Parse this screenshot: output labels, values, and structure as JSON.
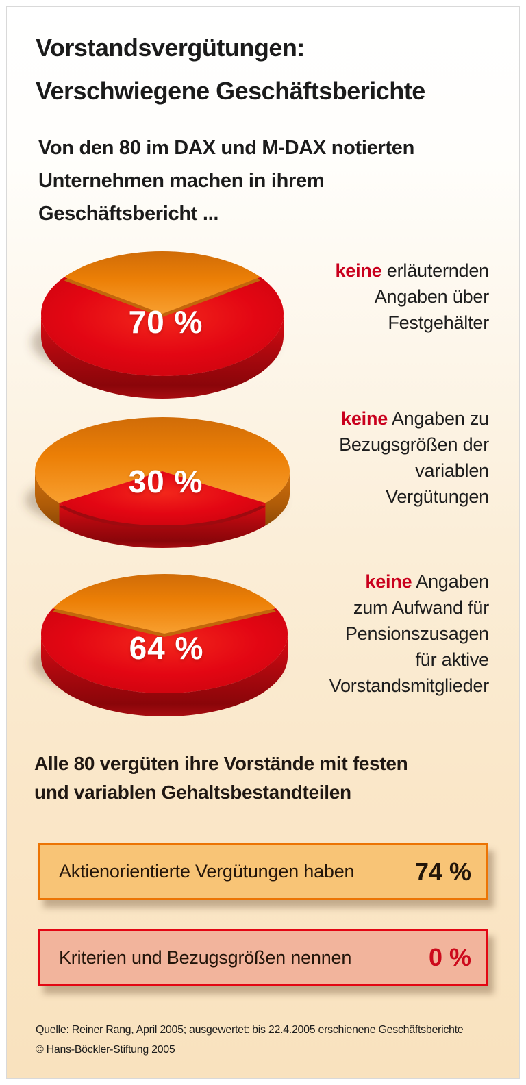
{
  "header": {
    "title": "Vorstandsvergütungen:\nVerschwiegene Geschäftsberichte",
    "intro": "Von den 80 im DAX und M-DAX notierten\nUnternehmen machen in ihrem\nGeschäftsbericht ..."
  },
  "chart_data": {
    "type": "pie",
    "description": "Anteil der 80 im DAX und M-DAX notierten Unternehmen, deren Geschäftsbericht bestimmte Angaben zur Vorstandsvergütung nicht enthält",
    "population_total": 80,
    "colors": {
      "share": "#e30613",
      "remainder": "#ef7d00",
      "keyword_red": "#c9001d"
    },
    "pies": [
      {
        "label": "70 %",
        "share_pct": 70,
        "remainder_pct": 30,
        "annotation": {
          "lead": "keine",
          "rest": " erläuternden\nAngaben über\nFestgehälter"
        }
      },
      {
        "label": "30 %",
        "share_pct": 30,
        "remainder_pct": 70,
        "annotation": {
          "lead": "keine",
          "rest": " Angaben zu\nBezugsgrößen der\nvariablen\nVergütungen"
        }
      },
      {
        "label": "64 %",
        "share_pct": 64,
        "remainder_pct": 36,
        "annotation": {
          "lead": "keine",
          "rest": " Angaben\nzum Aufwand für\nPensionszusagen\nfür aktive\nVorstandsmitglieder"
        }
      }
    ],
    "statement": "Alle 80 vergüten ihre Vorstände mit festen\nund variablen Gehaltsbestandteilen",
    "stats": [
      {
        "label": "Aktienorientierte Vergütungen haben",
        "value": "74 %",
        "fill": "#f8c476",
        "border": "#ec7404",
        "value_color": "#22150a"
      },
      {
        "label": "Kriterien und Bezugsgrößen nennen",
        "value": "0 %",
        "fill": "#f2b49c",
        "border": "#e30613",
        "value_color": "#cc0a1c"
      }
    ]
  },
  "footer": {
    "source": "Quelle: Reiner Rang, April 2005; ausgewertet: bis 22.4.2005 erschienene Geschäftsberichte",
    "copyright": "© Hans-Böckler-Stiftung 2005"
  }
}
